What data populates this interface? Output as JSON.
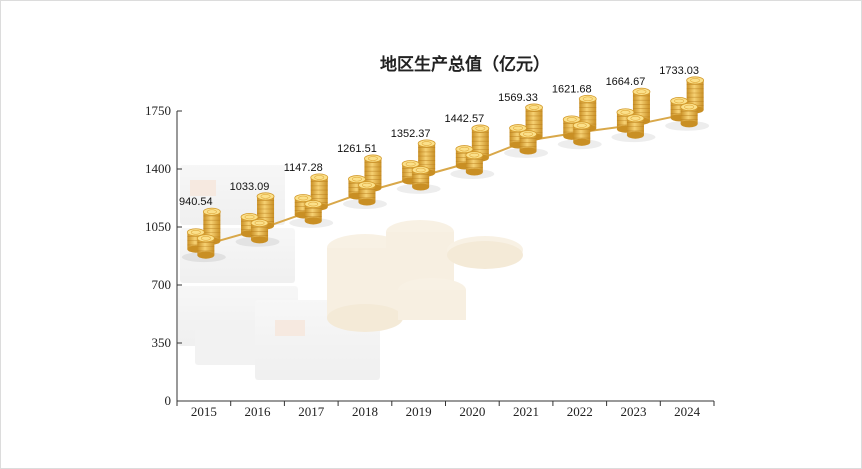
{
  "chart_data": {
    "type": "line",
    "title": "地区生产总值（亿元）",
    "xlabel": "",
    "ylabel": "",
    "categories": [
      "2015",
      "2016",
      "2017",
      "2018",
      "2019",
      "2020",
      "2021",
      "2022",
      "2023",
      "2024"
    ],
    "series": [
      {
        "values": [
          940.54,
          1033.09,
          1147.28,
          1261.51,
          1352.37,
          1442.57,
          1569.33,
          1621.68,
          1664.67,
          1733.03
        ]
      }
    ],
    "data_labels": [
      "940.54",
      "1033.09",
      "1147.28",
      "1261.51",
      "1352.37",
      "1442.57",
      "1569.33",
      "1621.68",
      "1664.67",
      "1733.03"
    ],
    "yticks": [
      "0",
      "350",
      "700",
      "1050",
      "1400",
      "1750"
    ],
    "ylim": [
      0,
      1750
    ],
    "grid": false,
    "legend": "none",
    "colors": {
      "line": "#d9a84a",
      "coin_light": "#fbe08a",
      "coin_dark": "#d39a2c",
      "axis": "#333333"
    }
  }
}
